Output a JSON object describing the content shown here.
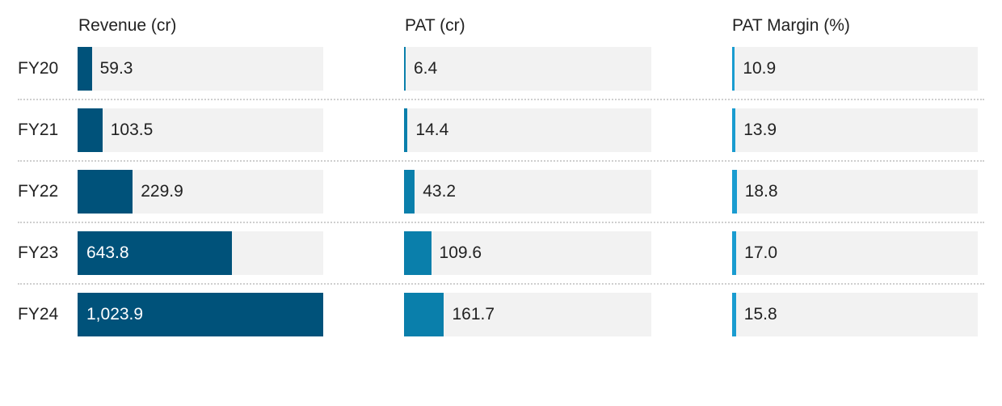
{
  "chart_data": {
    "type": "bar",
    "orientation": "horizontal",
    "categories": [
      "FY20",
      "FY21",
      "FY22",
      "FY23",
      "FY24"
    ],
    "series": [
      {
        "name": "Revenue (cr)",
        "values": [
          59.3,
          103.5,
          229.9,
          643.8,
          1023.9
        ],
        "labels": [
          "59.3",
          "103.5",
          "229.9",
          "643.8",
          "1,023.9"
        ],
        "max": 1023.9,
        "color": "#00527a"
      },
      {
        "name": "PAT (cr)",
        "values": [
          6.4,
          14.4,
          43.2,
          109.6,
          161.7
        ],
        "labels": [
          "6.4",
          "14.4",
          "43.2",
          "109.6",
          "161.7"
        ],
        "max": 1000,
        "color": "#0a7fab"
      },
      {
        "name": "PAT Margin (%)",
        "values": [
          10.9,
          13.9,
          18.8,
          17.0,
          15.8
        ],
        "labels": [
          "10.9",
          "13.9",
          "18.8",
          "17.0",
          "15.8"
        ],
        "max": 1000,
        "color": "#1a9cd0"
      }
    ],
    "track_color": "#f2f2f2",
    "grid": false,
    "legend": "none"
  }
}
